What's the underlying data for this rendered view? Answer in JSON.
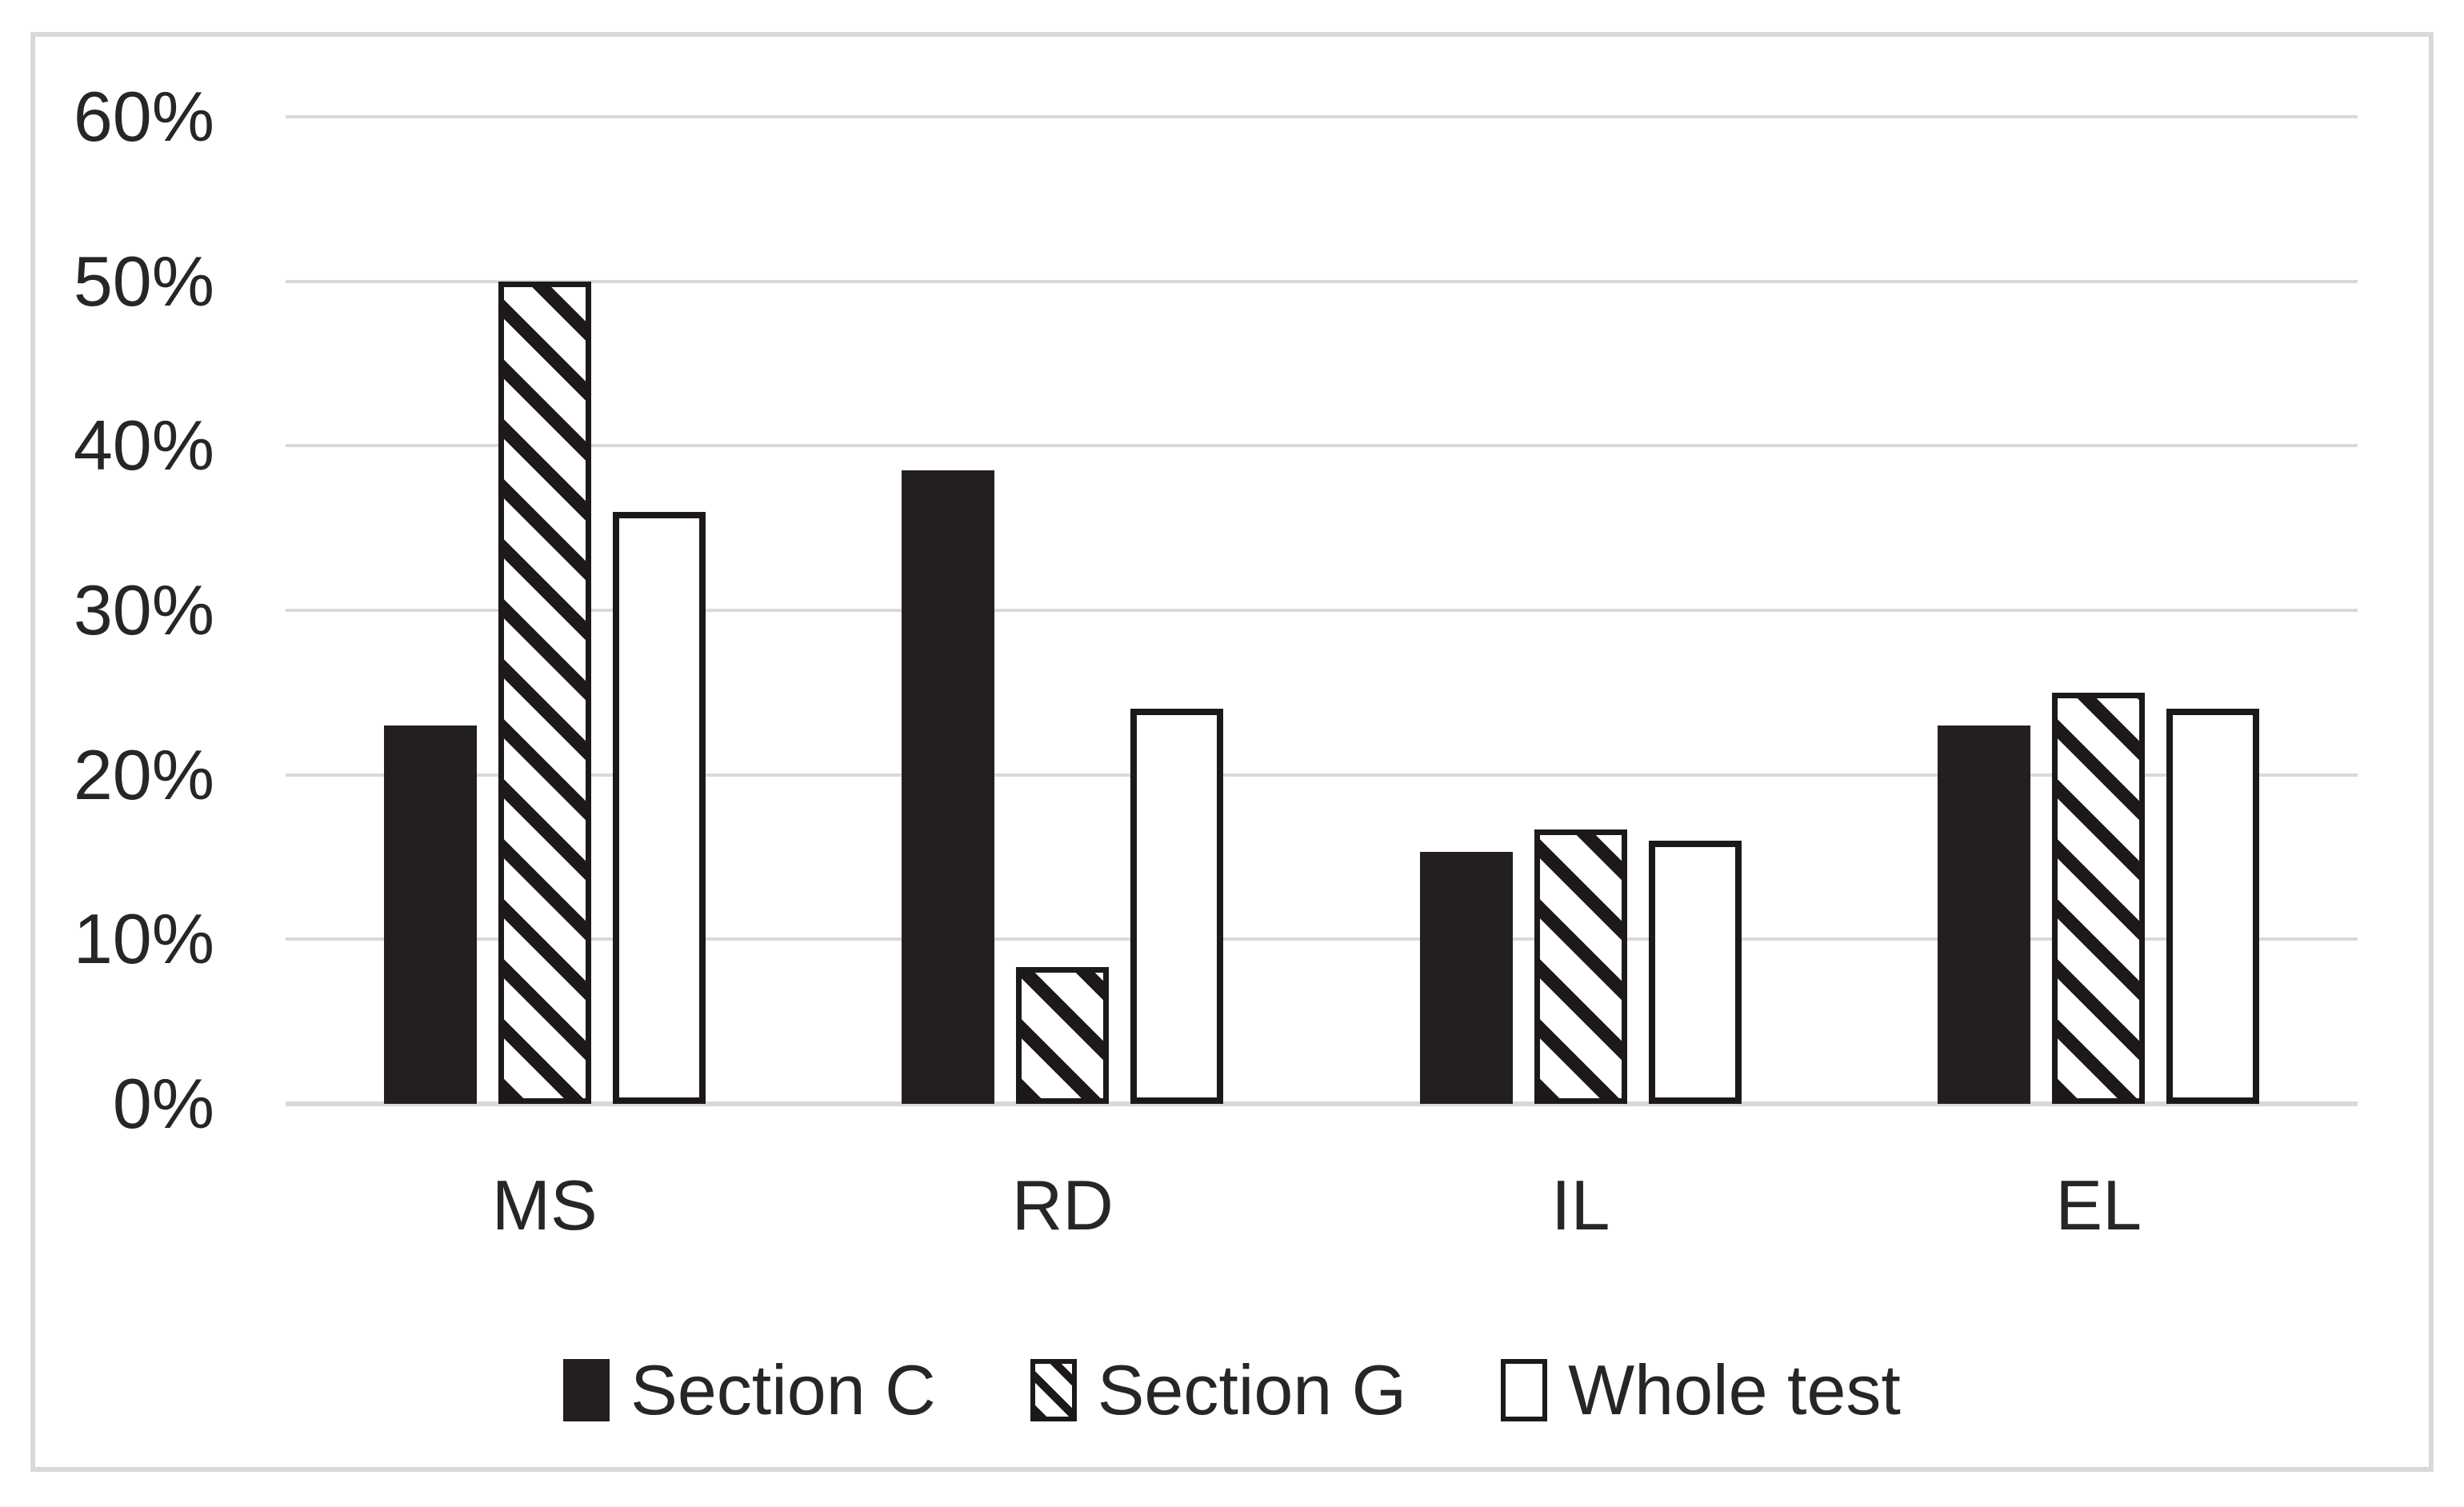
{
  "chart_data": {
    "type": "bar",
    "title": "",
    "xlabel": "",
    "ylabel": "",
    "categories": [
      "MS",
      "RD",
      "IL",
      "EL"
    ],
    "series": [
      {
        "name": "Section C",
        "style": "solid-black",
        "values": [
          23,
          38.5,
          15.3,
          23
        ]
      },
      {
        "name": "Section G",
        "style": "diagonal-hatch",
        "values": [
          50,
          8.3,
          16.7,
          25
        ]
      },
      {
        "name": "Whole test",
        "style": "white-outline",
        "values": [
          36,
          24,
          16,
          24
        ]
      }
    ],
    "ylim": [
      0,
      60
    ],
    "yticks": [
      {
        "value": 60,
        "label": "60%"
      },
      {
        "value": 50,
        "label": "50%"
      },
      {
        "value": 40,
        "label": "40%"
      },
      {
        "value": 30,
        "label": "30%"
      },
      {
        "value": 20,
        "label": "20%"
      },
      {
        "value": 10,
        "label": "10%"
      },
      {
        "value": 0,
        "label": "0%"
      }
    ],
    "grid": "horizontal",
    "legend_position": "bottom"
  },
  "colors": {
    "background": "#FFFFFF",
    "bar_black": "#231F20",
    "text": "#262626",
    "gridline": "#D9D9D9",
    "figure_border": "#D9D9D9"
  }
}
